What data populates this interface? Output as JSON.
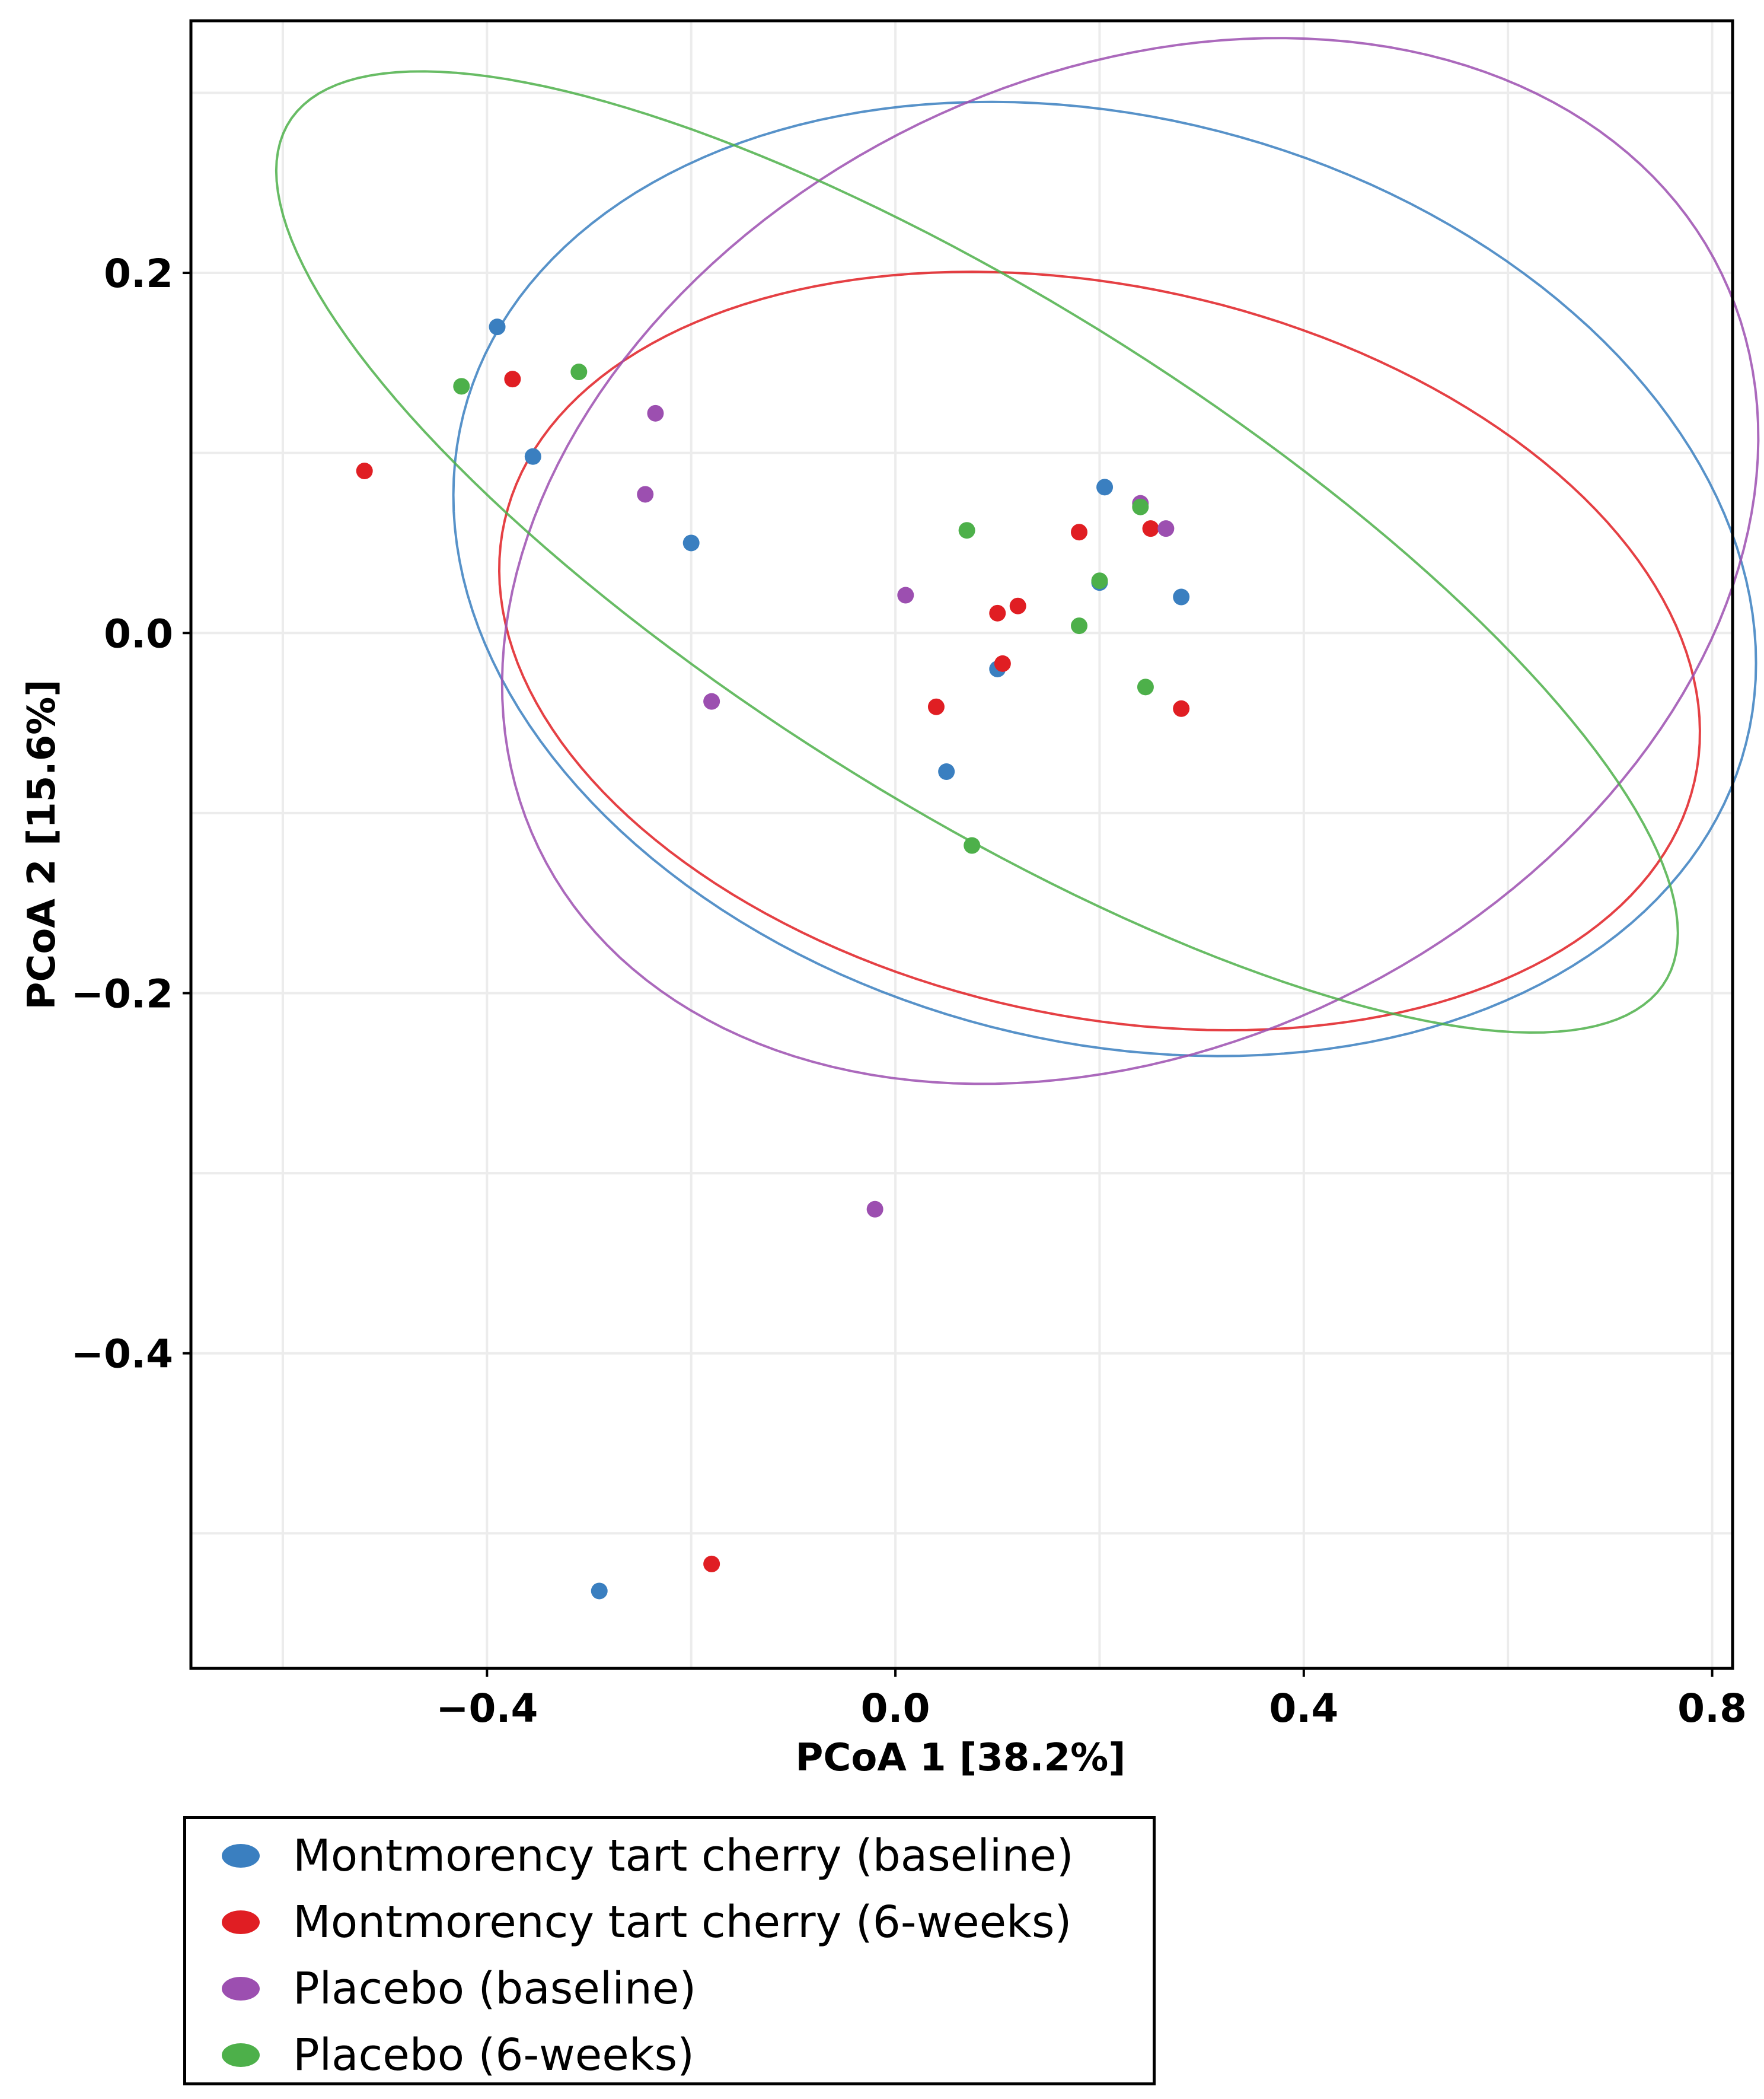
{
  "chart_data": {
    "type": "scatter",
    "title": "",
    "xlabel": "PCoA 1 [38.2%]",
    "ylabel": "PCoA 2 [15.6%]",
    "xlim": [
      -0.69,
      0.82
    ],
    "ylim": [
      -0.575,
      0.34
    ],
    "xticks": [
      -0.4,
      0.0,
      0.4,
      0.8
    ],
    "xtick_labels": [
      "−0.4",
      "0.0",
      "0.4",
      "0.8"
    ],
    "yticks": [
      -0.4,
      -0.2,
      0.0,
      0.2
    ],
    "ytick_labels": [
      "−0.4",
      "−0.2",
      "0.0",
      "0.2"
    ],
    "grid": true,
    "legend_position": "bottom",
    "series": [
      {
        "name": "Montmorency tart cherry (baseline)",
        "color": "#3a7fc0",
        "points": [
          [
            -0.39,
            0.17
          ],
          [
            -0.355,
            0.098
          ],
          [
            -0.2,
            0.05
          ],
          [
            0.05,
            -0.077
          ],
          [
            0.1,
            -0.02
          ],
          [
            0.2,
            0.028
          ],
          [
            0.205,
            0.081
          ],
          [
            0.28,
            0.02
          ],
          [
            -0.29,
            -0.532
          ]
        ],
        "ellipse": {
          "cx": 0.205,
          "cy": 0.03,
          "rx": 0.64,
          "ry": 0.26,
          "angle_deg": -5
        }
      },
      {
        "name": "Montmorency tart cherry (6-weeks)",
        "color": "#e01e23",
        "points": [
          [
            -0.52,
            0.09
          ],
          [
            -0.375,
            0.141
          ],
          [
            0.04,
            -0.041
          ],
          [
            0.1,
            0.011
          ],
          [
            0.105,
            -0.017
          ],
          [
            0.12,
            0.015
          ],
          [
            0.18,
            0.056
          ],
          [
            0.25,
            0.058
          ],
          [
            0.28,
            -0.042
          ],
          [
            -0.18,
            -0.517
          ]
        ],
        "ellipse": {
          "cx": 0.2,
          "cy": -0.01,
          "rx": 0.59,
          "ry": 0.205,
          "angle_deg": -5
        }
      },
      {
        "name": "Placebo (baseline)",
        "color": "#9c4fb0",
        "points": [
          [
            -0.235,
            0.122
          ],
          [
            -0.245,
            0.077
          ],
          [
            -0.18,
            -0.038
          ],
          [
            0.01,
            0.021
          ],
          [
            0.24,
            0.072
          ],
          [
            0.265,
            0.058
          ],
          [
            -0.02,
            -0.32
          ]
        ],
        "ellipse": {
          "cx": 0.23,
          "cy": 0.04,
          "rx": 0.62,
          "ry": 0.28,
          "angle_deg": 8
        }
      },
      {
        "name": "Placebo (6-weeks)",
        "color": "#4db04a",
        "points": [
          [
            -0.425,
            0.137
          ],
          [
            -0.31,
            0.145
          ],
          [
            0.07,
            0.057
          ],
          [
            0.075,
            -0.118
          ],
          [
            0.18,
            0.004
          ],
          [
            0.2,
            0.029
          ],
          [
            0.24,
            0.07
          ],
          [
            0.245,
            -0.03
          ]
        ],
        "ellipse": {
          "cx": 0.08,
          "cy": 0.045,
          "rx": 0.72,
          "ry": 0.155,
          "angle_deg": -18
        }
      }
    ]
  }
}
